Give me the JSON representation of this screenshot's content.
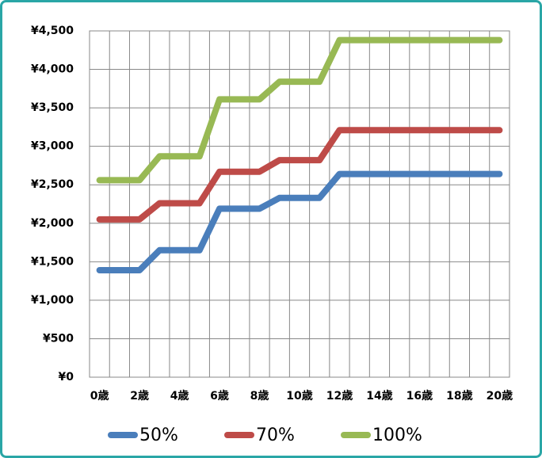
{
  "chart_data": {
    "type": "line",
    "categories": [
      "0歳",
      null,
      "2歳",
      null,
      "4歳",
      null,
      "6歳",
      null,
      "8歳",
      null,
      "10歳",
      null,
      "12歳",
      null,
      "14歳",
      null,
      "16歳",
      null,
      "18歳",
      null,
      "20歳"
    ],
    "series": [
      {
        "name": "50%",
        "color": "#4a7ebb",
        "values": [
          1390,
          1390,
          1390,
          1650,
          1650,
          1650,
          2190,
          2190,
          2190,
          2330,
          2330,
          2330,
          2640,
          2640,
          2640,
          2640,
          2640,
          2640,
          2640,
          2640,
          2640
        ]
      },
      {
        "name": "70%",
        "color": "#be4b48",
        "values": [
          2050,
          2050,
          2050,
          2260,
          2260,
          2260,
          2670,
          2670,
          2670,
          2820,
          2820,
          2820,
          3210,
          3210,
          3210,
          3210,
          3210,
          3210,
          3210,
          3210,
          3210
        ]
      },
      {
        "name": "100%",
        "color": "#98b954",
        "values": [
          2560,
          2560,
          2560,
          2870,
          2870,
          2870,
          3610,
          3610,
          3610,
          3840,
          3840,
          3840,
          4380,
          4380,
          4380,
          4380,
          4380,
          4380,
          4380,
          4380,
          4380
        ]
      }
    ],
    "ylim": [
      0,
      4500
    ],
    "yticks": [
      {
        "value": 0,
        "label": "¥0"
      },
      {
        "value": 500,
        "label": "¥500"
      },
      {
        "value": 1000,
        "label": "¥1,000"
      },
      {
        "value": 1500,
        "label": "¥1,500"
      },
      {
        "value": 2000,
        "label": "¥2,000"
      },
      {
        "value": 2500,
        "label": "¥2,500"
      },
      {
        "value": 3000,
        "label": "¥3,000"
      },
      {
        "value": 3500,
        "label": "¥3,500"
      },
      {
        "value": 4000,
        "label": "¥4,000"
      },
      {
        "value": 4500,
        "label": "¥4,500"
      }
    ],
    "grid": true,
    "legend": "bottom"
  }
}
